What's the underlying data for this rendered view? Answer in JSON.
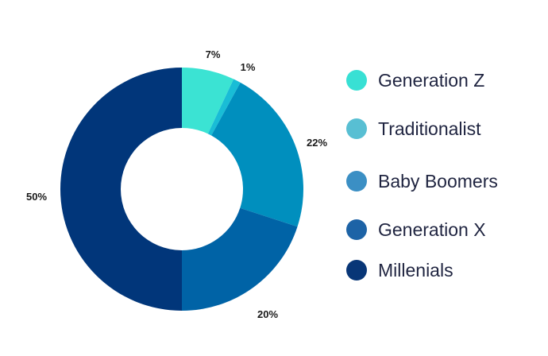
{
  "chart_data": {
    "type": "pie",
    "donut": true,
    "categories": [
      "Generation Z",
      "Traditionalist",
      "Baby Boomers",
      "Generation X",
      "Millenials"
    ],
    "values": [
      7,
      1,
      22,
      20,
      50
    ],
    "value_labels": [
      "7%",
      "1%",
      "22%",
      "20%",
      "50%"
    ],
    "colors": [
      "#3be3d3",
      "#19bdd6",
      "#008fbe",
      "#0063a6",
      "#01367a"
    ],
    "start_angle_deg": 0,
    "direction": "clockwise",
    "legend": {
      "position": "right",
      "labels": [
        "Generation Z",
        "Traditionalist",
        "Baby Boomers",
        "Generation X",
        "Millenials"
      ],
      "colors": [
        "#38e0d4",
        "#58bfd3",
        "#3b8fc4",
        "#1d63a6",
        "#083677"
      ]
    }
  }
}
